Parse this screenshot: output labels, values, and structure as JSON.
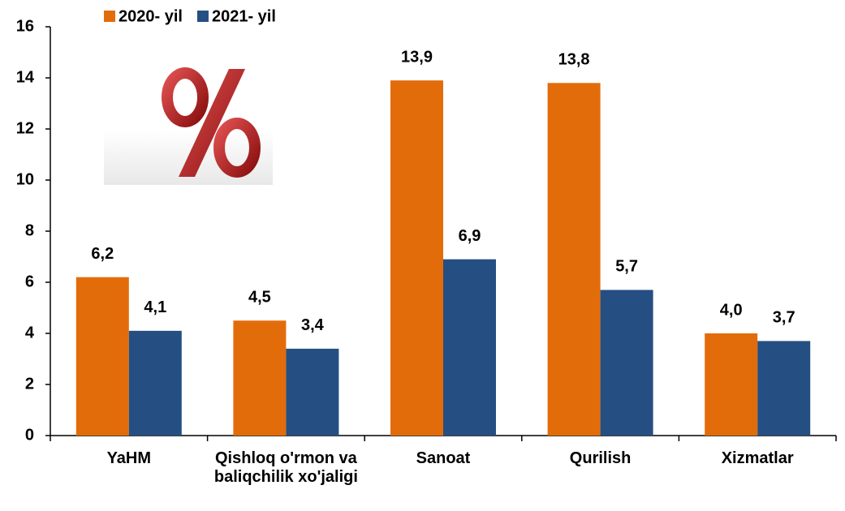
{
  "chart_data": {
    "type": "bar",
    "categories": [
      "YaHM",
      "Qishloq o'rmon va baliqchilik xo'jaligi",
      "Sanoat",
      "Qurilish",
      "Xizmatlar"
    ],
    "series": [
      {
        "name": "2020- yil",
        "color": "#e36c0a",
        "values": [
          6.2,
          4.5,
          13.9,
          13.8,
          4.0
        ],
        "value_labels": [
          "6,2",
          "4,5",
          "13,9",
          "13,8",
          "4,0"
        ]
      },
      {
        "name": "2021- yil",
        "color": "#254f82",
        "values": [
          4.1,
          3.4,
          6.9,
          5.7,
          3.7
        ],
        "value_labels": [
          "4,1",
          "3,4",
          "6,9",
          "5,7",
          "3,7"
        ]
      }
    ],
    "ylim": [
      0,
      16
    ],
    "yticks": [
      0,
      2,
      4,
      6,
      8,
      10,
      12,
      14,
      16
    ],
    "grid": false,
    "legend": "top"
  }
}
